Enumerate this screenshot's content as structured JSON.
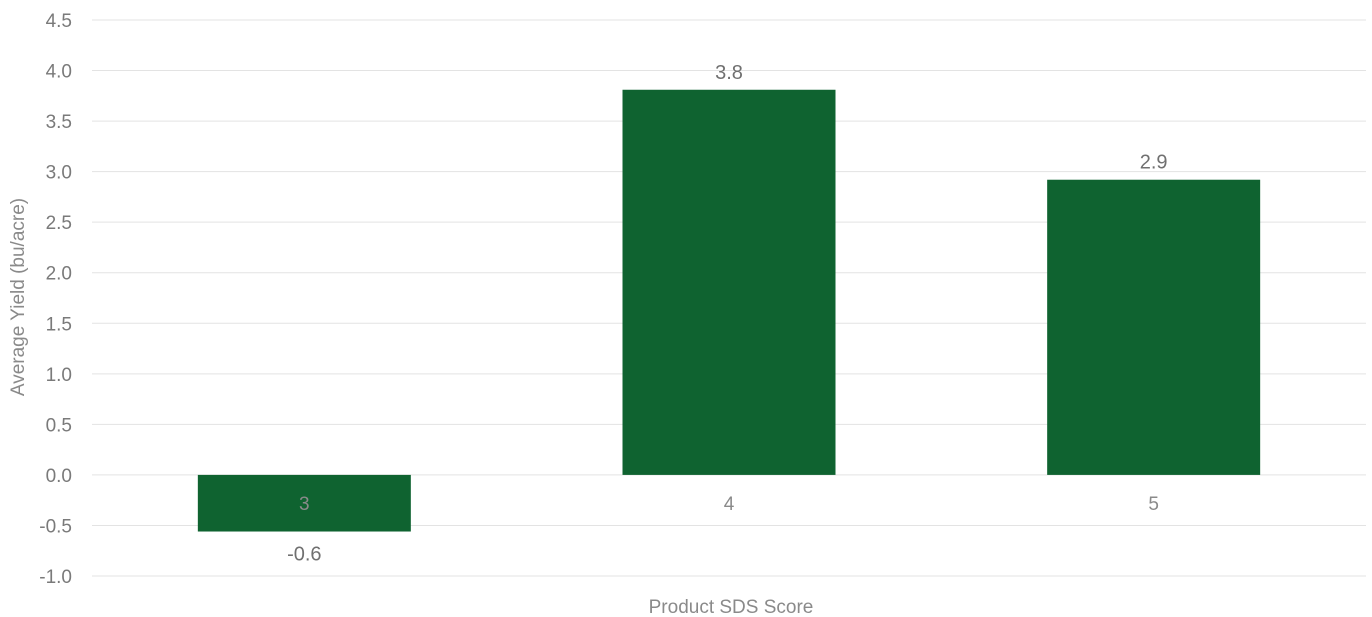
{
  "chart_data": {
    "type": "bar",
    "title": "",
    "xlabel": "Product SDS Score",
    "ylabel": "Average Yield (bu/acre)",
    "categories": [
      "3",
      "4",
      "5"
    ],
    "values": [
      -0.56,
      3.81,
      2.92
    ],
    "data_labels": [
      "-0.6",
      "3.8",
      "2.9"
    ],
    "ylim": [
      -1.0,
      4.5
    ],
    "ytick_labels": [
      "-1.0",
      "-0.5",
      "0.0",
      "0.5",
      "1.0",
      "1.5",
      "2.0",
      "2.5",
      "3.0",
      "3.5",
      "4.0",
      "4.5"
    ],
    "grid": true,
    "legend": "none",
    "bar_color": "#0f6330"
  }
}
